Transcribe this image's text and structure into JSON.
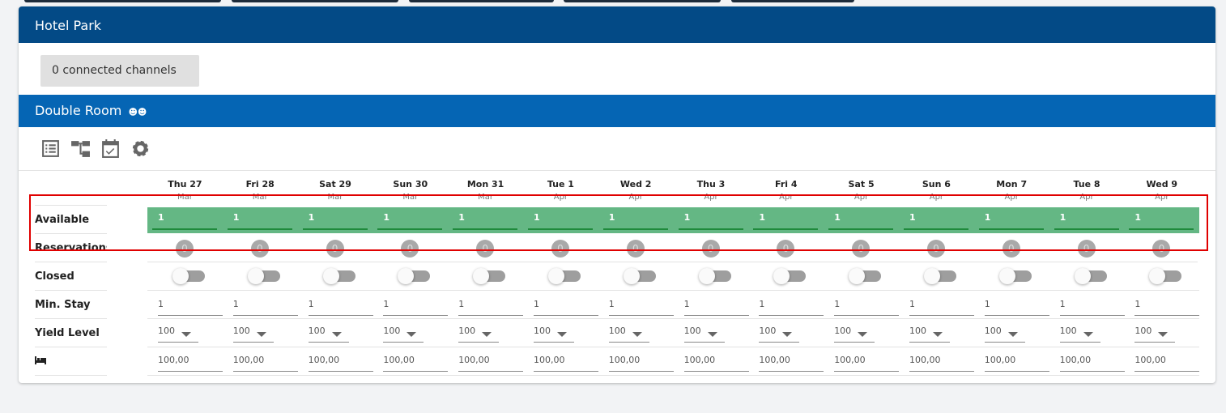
{
  "hotel": {
    "name": "Hotel Park",
    "channels_label": "0 connected channels"
  },
  "room": {
    "name": "Double Room",
    "icons": [
      "person-icon",
      "person-icon"
    ]
  },
  "toolbar_icons": [
    "list-icon",
    "hierarchy-icon",
    "calendar-check-icon",
    "gear-icon"
  ],
  "row_labels": {
    "available": "Available",
    "reservations": "Reservations",
    "closed": "Closed",
    "min_stay": "Min. Stay",
    "yield": "Yield Level",
    "price_icon": "bed-icon"
  },
  "days": [
    {
      "day": "Thu 27",
      "month": "Mar"
    },
    {
      "day": "Fri 28",
      "month": "Mar"
    },
    {
      "day": "Sat 29",
      "month": "Mar"
    },
    {
      "day": "Sun 30",
      "month": "Mar"
    },
    {
      "day": "Mon 31",
      "month": "Mar"
    },
    {
      "day": "Tue 1",
      "month": "Apr"
    },
    {
      "day": "Wed 2",
      "month": "Apr"
    },
    {
      "day": "Thu 3",
      "month": "Apr"
    },
    {
      "day": "Fri 4",
      "month": "Apr"
    },
    {
      "day": "Sat 5",
      "month": "Apr"
    },
    {
      "day": "Sun 6",
      "month": "Apr"
    },
    {
      "day": "Mon 7",
      "month": "Apr"
    },
    {
      "day": "Tue 8",
      "month": "Apr"
    },
    {
      "day": "Wed 9",
      "month": "Apr"
    }
  ],
  "values": {
    "available": "1",
    "reservations": "0",
    "closed": false,
    "min_stay": "1",
    "yield": "100",
    "price": "100,00"
  },
  "colors": {
    "header": "#034a86",
    "room": "#0565b4",
    "available": "#64b784",
    "highlight": "#e00000"
  }
}
